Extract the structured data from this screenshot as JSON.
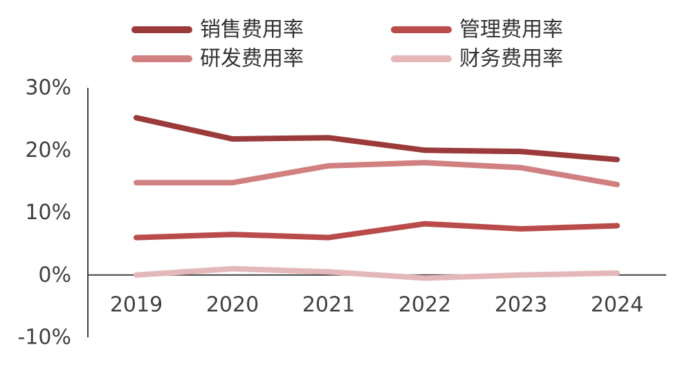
{
  "chart_data": {
    "type": "line",
    "title": "",
    "xlabel": "",
    "ylabel": "",
    "x": [
      "2019",
      "2020",
      "2021",
      "2022",
      "2023",
      "2024"
    ],
    "ylim": [
      -10,
      30
    ],
    "yticks": [
      "30%",
      "20%",
      "10%",
      "0%",
      "-10%"
    ],
    "ytick_values": [
      30,
      20,
      10,
      0,
      -10
    ],
    "grid": false,
    "legend_position": "top",
    "series": [
      {
        "name": "销售费用率",
        "color": "#9B3A3A",
        "values": [
          25.2,
          21.8,
          22.0,
          20.0,
          19.8,
          18.5
        ]
      },
      {
        "name": "管理费用率",
        "color": "#B94B4B",
        "values": [
          6.0,
          6.5,
          6.0,
          8.2,
          7.4,
          7.9
        ]
      },
      {
        "name": "研发费用率",
        "color": "#D08080",
        "values": [
          14.8,
          14.8,
          17.5,
          18.0,
          17.2,
          14.5
        ]
      },
      {
        "name": "财务费用率",
        "color": "#E4B8B8",
        "values": [
          0.0,
          1.0,
          0.5,
          -0.5,
          0.0,
          0.3
        ]
      }
    ]
  }
}
